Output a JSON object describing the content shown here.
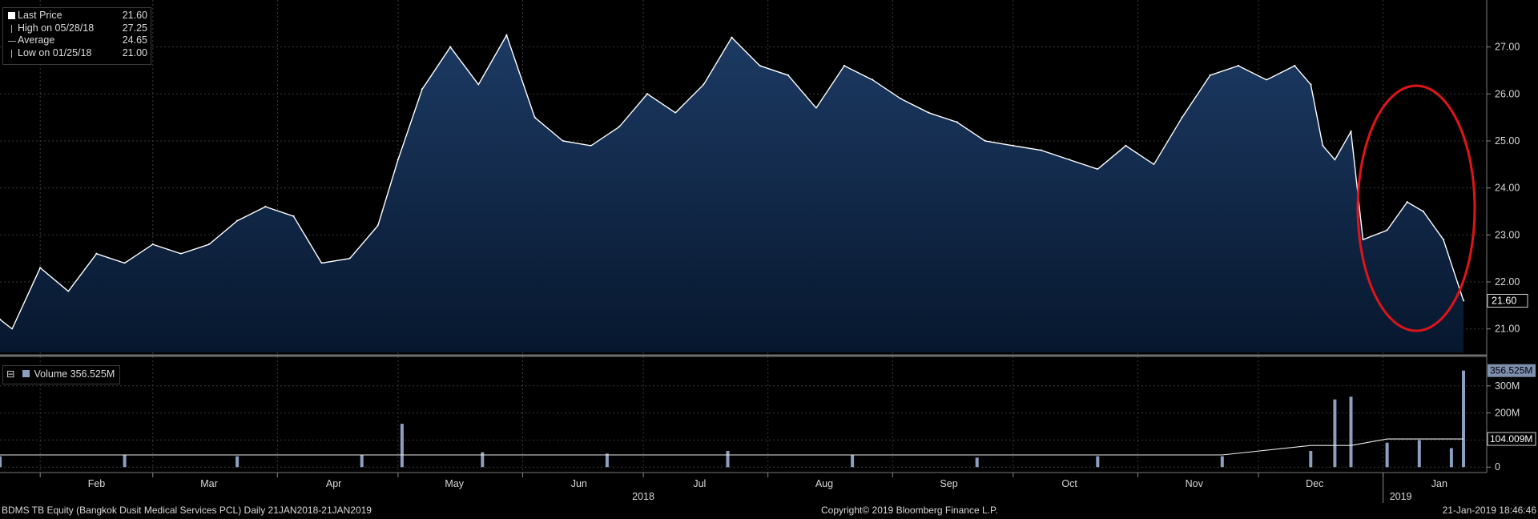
{
  "window": {
    "footer_left": "BDMS TB Equity (Bangkok Dusit Medical Services PCL)  Daily 21JAN2018-21JAN2019",
    "footer_center": "Copyright© 2019 Bloomberg Finance L.P.",
    "footer_right": "21-Jan-2019 18:46:46"
  },
  "legend": {
    "last_label": "Last Price",
    "last_value": "21.60",
    "high_label": "High on 05/28/18",
    "high_value": "27.25",
    "avg_label": "Average",
    "avg_value": "24.65",
    "low_label": "Low on 01/25/18",
    "low_value": "21.00"
  },
  "volume_legend": {
    "label": "Volume 356.525M"
  },
  "colors": {
    "area_top": "#1c3a63",
    "area_bottom": "#07172e",
    "line": "#ffffff",
    "volume_bar": "#8d9fc0",
    "annotation": "#e0141a"
  },
  "chart_data": [
    {
      "type": "area",
      "series": [
        {
          "name": "Last Price",
          "x": [
            "2018-01-22",
            "2018-01-25",
            "2018-02-01",
            "2018-02-08",
            "2018-02-15",
            "2018-02-22",
            "2018-03-01",
            "2018-03-08",
            "2018-03-15",
            "2018-03-22",
            "2018-03-29",
            "2018-04-05",
            "2018-04-12",
            "2018-04-19",
            "2018-04-26",
            "2018-05-01",
            "2018-05-07",
            "2018-05-14",
            "2018-05-21",
            "2018-05-28",
            "2018-06-04",
            "2018-06-11",
            "2018-06-18",
            "2018-06-25",
            "2018-07-02",
            "2018-07-09",
            "2018-07-16",
            "2018-07-23",
            "2018-07-30",
            "2018-08-06",
            "2018-08-13",
            "2018-08-20",
            "2018-08-27",
            "2018-09-03",
            "2018-09-10",
            "2018-09-17",
            "2018-09-24",
            "2018-10-01",
            "2018-10-08",
            "2018-10-15",
            "2018-10-22",
            "2018-10-29",
            "2018-11-05",
            "2018-11-12",
            "2018-11-19",
            "2018-11-26",
            "2018-12-03",
            "2018-12-10",
            "2018-12-14",
            "2018-12-17",
            "2018-12-20",
            "2018-12-24",
            "2018-12-27",
            "2019-01-02",
            "2019-01-07",
            "2019-01-11",
            "2019-01-16",
            "2019-01-21"
          ],
          "values": [
            21.2,
            21.0,
            22.3,
            21.8,
            22.6,
            22.4,
            22.8,
            22.6,
            22.8,
            23.3,
            23.6,
            23.4,
            22.4,
            22.5,
            23.2,
            24.6,
            26.1,
            27.0,
            26.2,
            27.25,
            25.5,
            25.0,
            24.9,
            25.3,
            26.0,
            25.6,
            26.2,
            27.2,
            26.6,
            26.4,
            25.7,
            26.6,
            26.3,
            25.9,
            25.6,
            25.4,
            25.0,
            24.9,
            24.8,
            24.6,
            24.4,
            24.9,
            24.5,
            25.5,
            26.4,
            26.6,
            26.3,
            26.6,
            26.2,
            24.9,
            24.6,
            25.2,
            22.9,
            23.1,
            23.7,
            23.5,
            22.9,
            21.6
          ],
          "ylim": [
            20.5,
            28.0
          ],
          "yticks": [
            "21.00",
            "22.00",
            "23.00",
            "24.00",
            "25.00",
            "26.00",
            "27.00"
          ],
          "last_label": "21.60"
        }
      ],
      "xticks": [
        "Feb",
        "Mar",
        "Apr",
        "May",
        "Jun",
        "Jul",
        "Aug",
        "Sep",
        "Oct",
        "Nov",
        "Dec",
        "Jan"
      ],
      "year_labels": [
        "2018",
        "2019"
      ]
    },
    {
      "type": "bar",
      "series": [
        {
          "name": "Volume",
          "x": [
            "2018-01-22",
            "2018-02-22",
            "2018-03-22",
            "2018-04-22",
            "2018-05-02",
            "2018-05-22",
            "2018-06-22",
            "2018-07-22",
            "2018-08-22",
            "2018-09-22",
            "2018-10-22",
            "2018-11-22",
            "2018-12-14",
            "2018-12-20",
            "2018-12-24",
            "2019-01-02",
            "2019-01-10",
            "2019-01-18",
            "2019-01-21"
          ],
          "values": [
            40,
            45,
            40,
            45,
            160,
            55,
            50,
            60,
            45,
            35,
            40,
            40,
            60,
            250,
            260,
            90,
            100,
            70,
            356.525
          ],
          "ylim": [
            -20,
            400
          ],
          "yticks": [
            "0",
            "100M",
            "200M",
            "300M"
          ],
          "last_label": "356.525M",
          "avg_label": "104.009M"
        }
      ]
    }
  ]
}
